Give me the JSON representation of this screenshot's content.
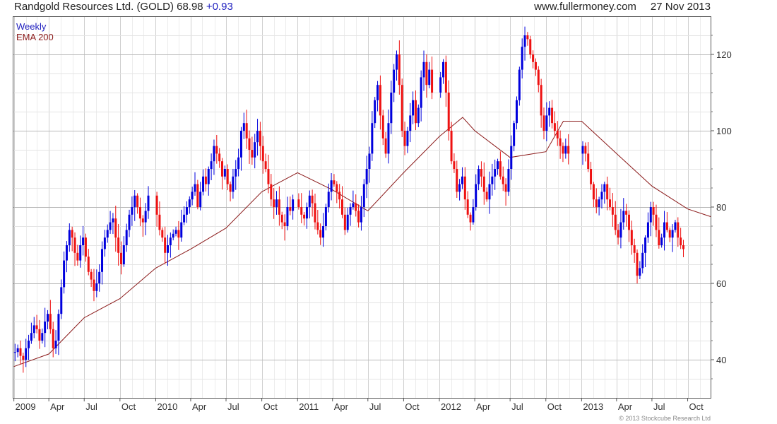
{
  "header": {
    "company": "Randgold Resources Ltd. (GOLD)",
    "last": "68.98",
    "change": "+0.93",
    "site": "www.fullermoney.com",
    "date": "27 Nov 2013"
  },
  "copyright": "© 2013 Stockcube Research Ltd",
  "colors": {
    "up": "#0000dd",
    "down": "#ee1111",
    "ema": "#8b1a1a",
    "grid": "#d4d4d4"
  },
  "chart_data": {
    "type": "candlestick",
    "legend": [
      {
        "label": "Weekly",
        "color": "#1f1fbf"
      },
      {
        "label": "EMA 200",
        "color": "#8b1a1a"
      }
    ],
    "x_axis": {
      "ticks": [
        "2009",
        "Apr",
        "Jul",
        "Oct",
        "2010",
        "Apr",
        "Jul",
        "Oct",
        "2011",
        "Apr",
        "Jul",
        "Oct",
        "2012",
        "Apr",
        "Jul",
        "Oct",
        "2013",
        "Apr",
        "Jul",
        "Oct"
      ],
      "range": [
        "2008-12-29",
        "2013-11-29"
      ]
    },
    "y_axis": {
      "ticks": [
        "40",
        "60",
        "80",
        "100",
        "120"
      ],
      "range": [
        30,
        130
      ],
      "position": "right"
    },
    "grid": true,
    "series": [
      {
        "name": "Weekly",
        "weekly_closes": [
          [
            2009,
            42,
            43,
            41,
            40,
            43,
            45,
            47,
            49,
            48,
            45,
            47,
            50,
            52,
            48,
            43,
            45,
            52,
            59,
            66,
            70,
            74,
            72,
            68,
            66,
            70,
            72,
            67,
            63,
            61,
            58,
            60,
            63,
            69,
            72,
            74,
            76,
            77,
            72,
            68,
            65,
            70,
            74,
            78,
            80,
            83,
            80,
            77,
            76,
            79,
            83
          ],
          [
            2010,
            78,
            74,
            72,
            68,
            70,
            72,
            73,
            74,
            72,
            76,
            78,
            80,
            82,
            84,
            86,
            80,
            84,
            88,
            86,
            90,
            92,
            96,
            94,
            92,
            88,
            90,
            86,
            84,
            88,
            90,
            93,
            100,
            102,
            98,
            95,
            93,
            97,
            100,
            96,
            92,
            90,
            86,
            82,
            80,
            82,
            78,
            76,
            75,
            80,
            79,
            82
          ],
          [
            2011,
            80,
            78,
            77,
            80,
            83,
            81,
            76,
            74,
            72,
            75,
            80,
            84,
            87,
            86,
            84,
            82,
            78,
            74,
            78,
            80,
            81,
            79,
            76,
            80,
            86,
            90,
            94,
            102,
            108,
            112,
            104,
            98,
            94,
            102,
            110,
            116,
            120,
            112,
            100,
            96,
            100,
            104,
            108,
            102,
            106,
            114,
            118,
            112,
            116,
            110
          ],
          [
            2012,
            114,
            118,
            110,
            100,
            92,
            90,
            84,
            86,
            88,
            82,
            78,
            76,
            80,
            86,
            90,
            88,
            84,
            82,
            86,
            88,
            90,
            92,
            88,
            86,
            84,
            90,
            96,
            102,
            108,
            116,
            122,
            125,
            124,
            120,
            118,
            116,
            112,
            104,
            100,
            104,
            106,
            102,
            100,
            98,
            96,
            94,
            96,
            94
          ],
          [
            2013,
            96,
            94,
            90,
            86,
            82,
            80,
            82,
            84,
            86,
            82,
            80,
            78,
            74,
            72,
            76,
            79,
            78,
            74,
            70,
            68,
            62,
            64,
            68,
            72,
            76,
            80,
            78,
            74,
            70,
            72,
            76,
            74,
            72,
            74,
            76,
            72,
            70,
            68.98
          ]
        ]
      },
      {
        "name": "EMA 200",
        "points": [
          [
            "2009-01-01",
            38.2
          ],
          [
            "2009-04-01",
            41.5
          ],
          [
            "2009-07-01",
            51
          ],
          [
            "2009-10-01",
            56
          ],
          [
            "2010-01-01",
            64
          ],
          [
            "2010-04-01",
            69
          ],
          [
            "2010-07-01",
            74.5
          ],
          [
            "2010-10-01",
            84
          ],
          [
            "2011-01-01",
            89
          ],
          [
            "2011-04-01",
            84.5
          ],
          [
            "2011-07-01",
            79
          ],
          [
            "2011-10-01",
            89
          ],
          [
            "2012-01-01",
            98.5
          ],
          [
            "2012-03-01",
            103.5
          ],
          [
            "2012-04-01",
            100
          ],
          [
            "2012-07-01",
            93
          ],
          [
            "2012-10-01",
            94.5
          ],
          [
            "2012-11-15",
            102.5
          ],
          [
            "2013-01-01",
            102.5
          ],
          [
            "2013-04-01",
            94
          ],
          [
            "2013-07-01",
            85.5
          ],
          [
            "2013-10-01",
            79.5
          ],
          [
            "2013-11-29",
            77.5
          ]
        ]
      }
    ]
  }
}
